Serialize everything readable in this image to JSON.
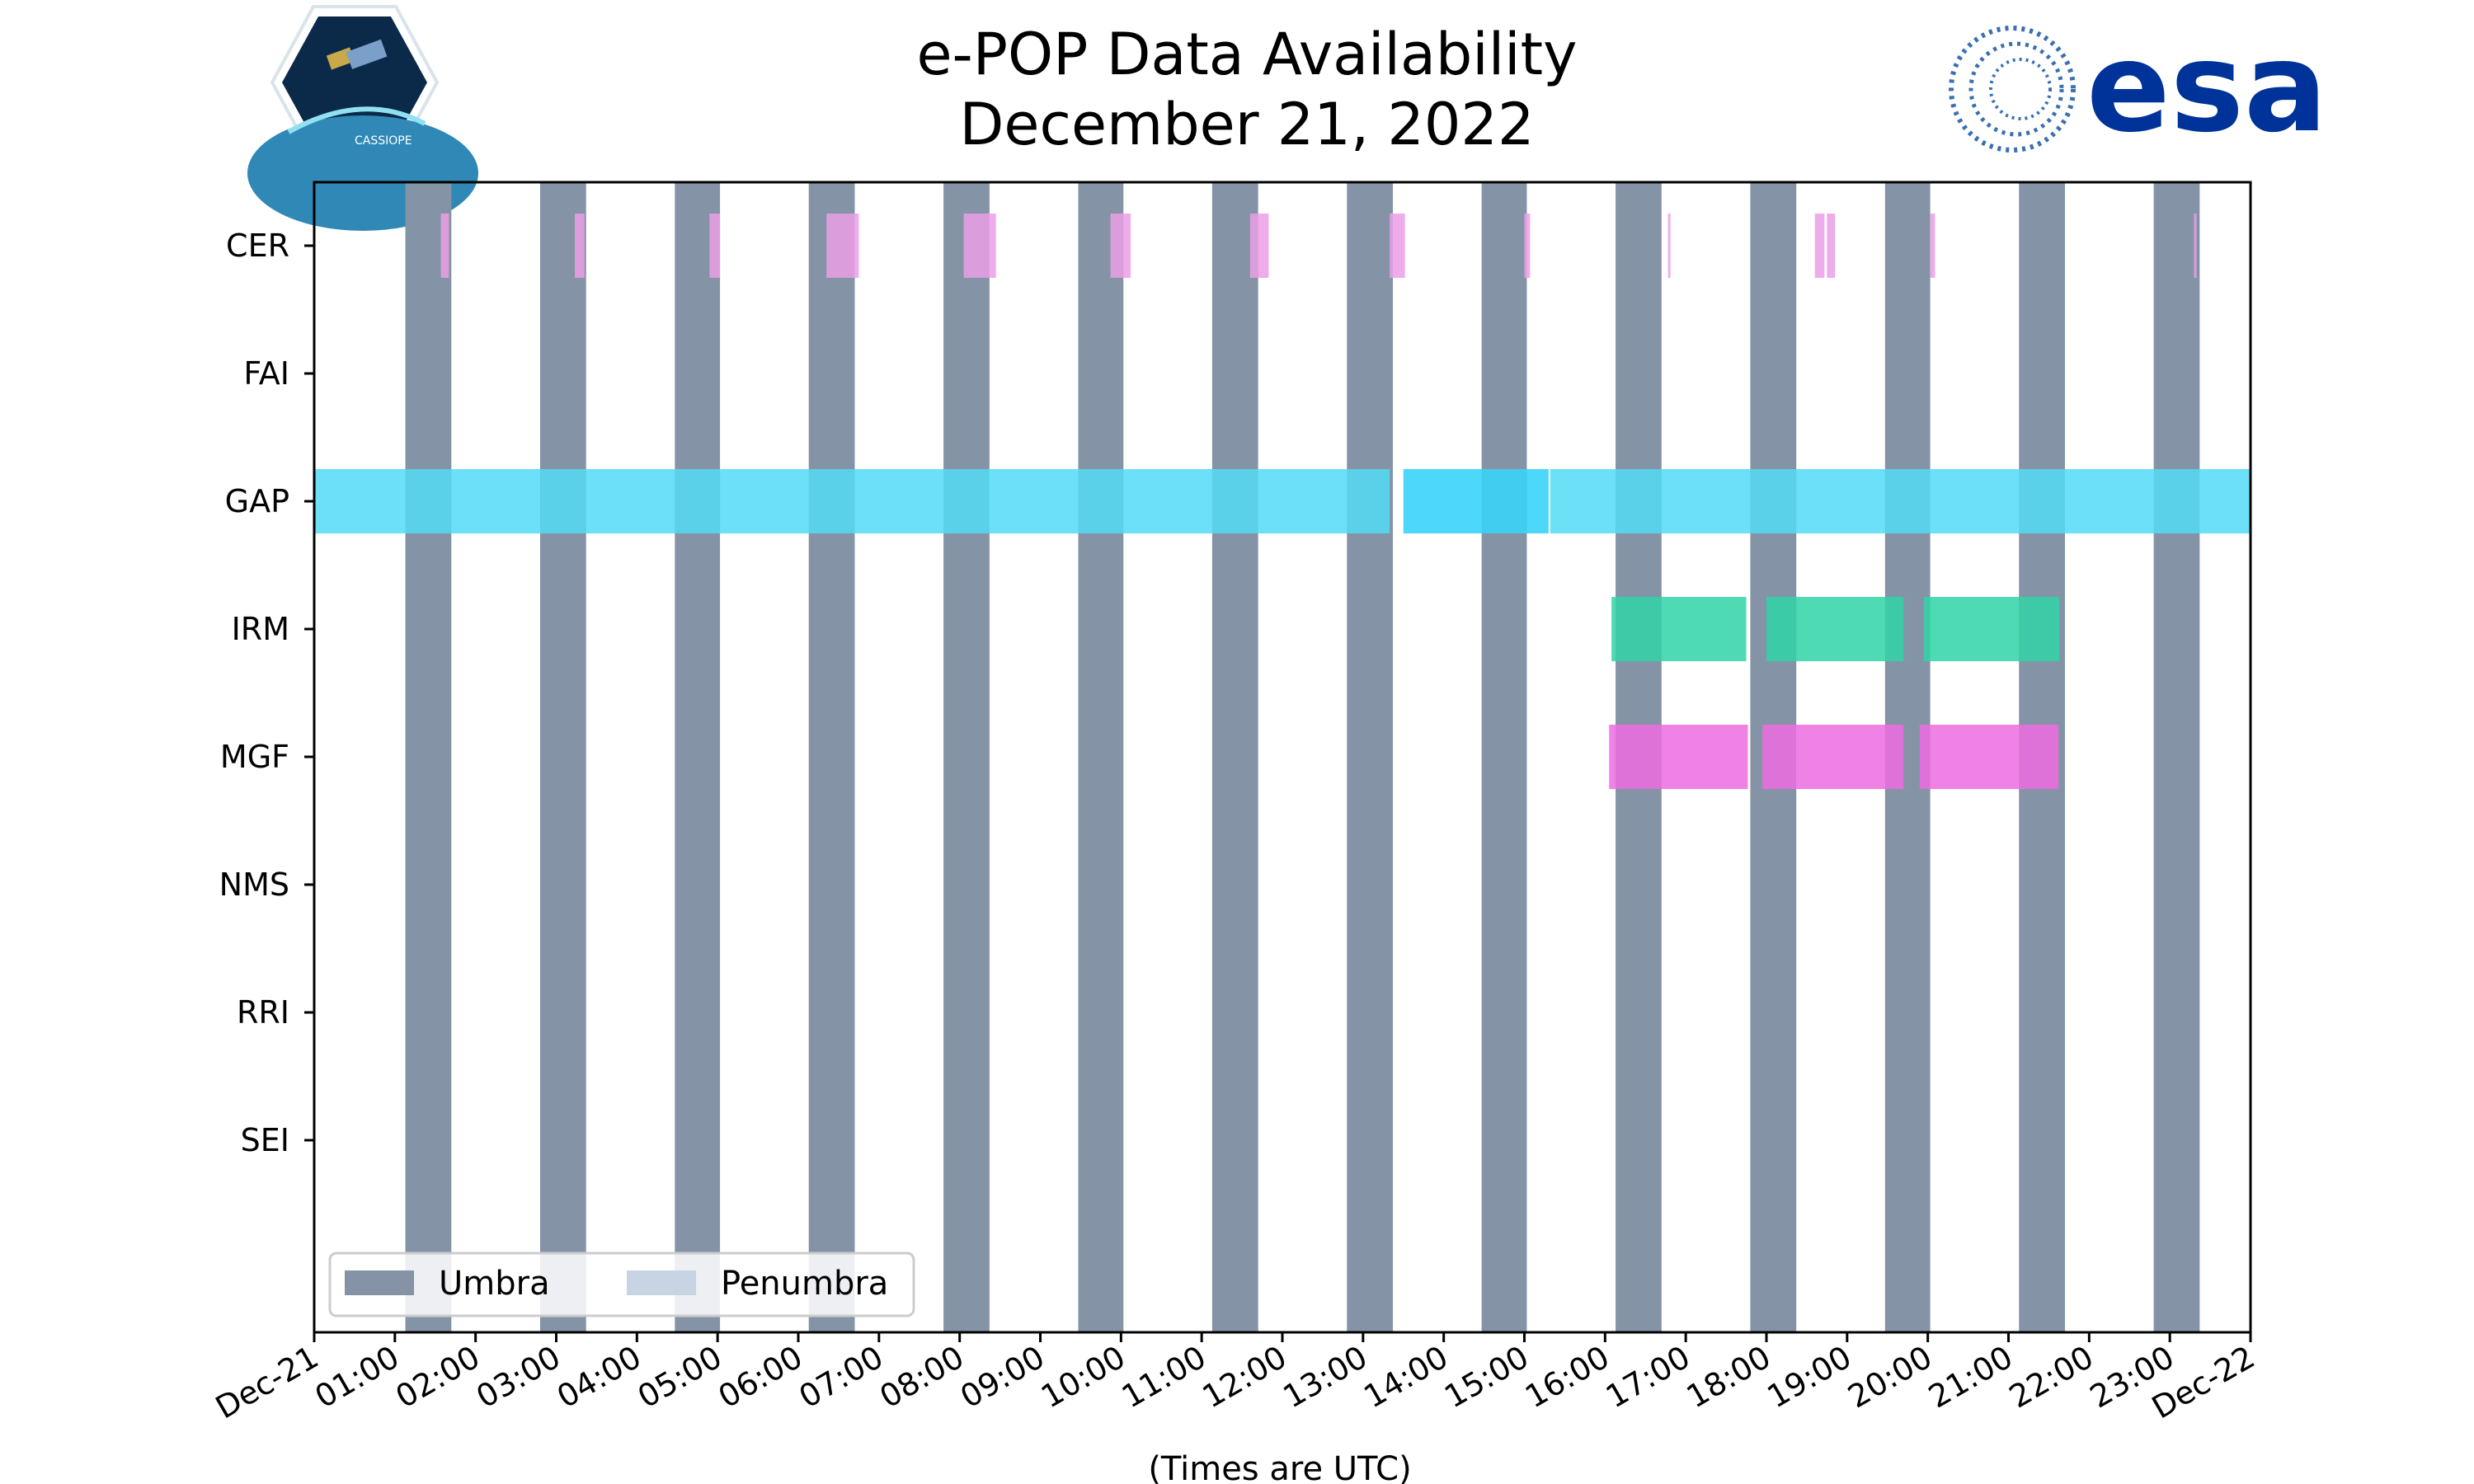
{
  "header": {
    "title_line1": "e-POP Data Availability",
    "title_line2": "December 21, 2022",
    "left_logo_text": "CASSIOPE",
    "right_logo_text": "esa"
  },
  "colors": {
    "umbra": "#8494a6",
    "penumbra": "#c8d4e3",
    "CER": "#eb9fe6",
    "GAP": "#52dbf5",
    "GAP_bright": "#3ad3f7",
    "IRM": "#2fd5a6",
    "MGF": "#ee6ce0",
    "esa_blue": "#003399"
  },
  "chart_data": {
    "type": "timeline",
    "title": "e-POP Data Availability\nDecember 21, 2022",
    "xlabel": "(Times are UTC)",
    "x_range_hours": [
      0,
      24
    ],
    "x_tick_labels": [
      "Dec-21",
      "01:00",
      "02:00",
      "03:00",
      "04:00",
      "05:00",
      "06:00",
      "07:00",
      "08:00",
      "09:00",
      "10:00",
      "11:00",
      "12:00",
      "13:00",
      "14:00",
      "15:00",
      "16:00",
      "17:00",
      "18:00",
      "19:00",
      "20:00",
      "21:00",
      "22:00",
      "23:00",
      "Dec-22"
    ],
    "instruments": [
      "CER",
      "FAI",
      "GAP",
      "IRM",
      "MGF",
      "NMS",
      "RRI",
      "SEI"
    ],
    "umbra_hours": [
      [
        1.13,
        1.7
      ],
      [
        2.8,
        3.37
      ],
      [
        4.47,
        5.03
      ],
      [
        6.13,
        6.7
      ],
      [
        7.8,
        8.37
      ],
      [
        9.47,
        10.03
      ],
      [
        11.13,
        11.7
      ],
      [
        12.8,
        13.37
      ],
      [
        14.47,
        15.03
      ],
      [
        16.13,
        16.7
      ],
      [
        17.8,
        18.37
      ],
      [
        19.47,
        20.03
      ],
      [
        21.13,
        21.7
      ],
      [
        22.8,
        23.37
      ]
    ],
    "penumbra_hours": [],
    "series": [
      {
        "name": "CER",
        "intervals": [
          [
            1.57,
            1.67
          ],
          [
            3.23,
            3.35
          ],
          [
            4.9,
            5.03
          ],
          [
            6.35,
            6.75
          ],
          [
            8.05,
            8.45
          ],
          [
            9.87,
            10.12
          ],
          [
            11.6,
            11.83
          ],
          [
            13.33,
            13.52
          ],
          [
            15.0,
            15.07
          ],
          [
            16.78,
            16.81
          ],
          [
            18.6,
            18.72
          ],
          [
            18.75,
            18.85
          ],
          [
            20.03,
            20.09
          ],
          [
            23.3,
            23.32
          ]
        ]
      },
      {
        "name": "GAP",
        "intervals": [
          [
            0.0,
            13.33
          ],
          [
            13.5,
            15.3
          ],
          [
            15.32,
            24.0
          ]
        ]
      },
      {
        "name": "IRM",
        "intervals": [
          [
            16.08,
            17.75
          ],
          [
            18.0,
            19.7
          ],
          [
            19.95,
            21.63
          ]
        ]
      },
      {
        "name": "MGF",
        "intervals": [
          [
            16.05,
            17.77
          ],
          [
            17.95,
            19.7
          ],
          [
            19.9,
            21.62
          ]
        ]
      }
    ],
    "legend": {
      "position": "lower-left",
      "entries": [
        "Umbra",
        "Penumbra"
      ]
    }
  }
}
